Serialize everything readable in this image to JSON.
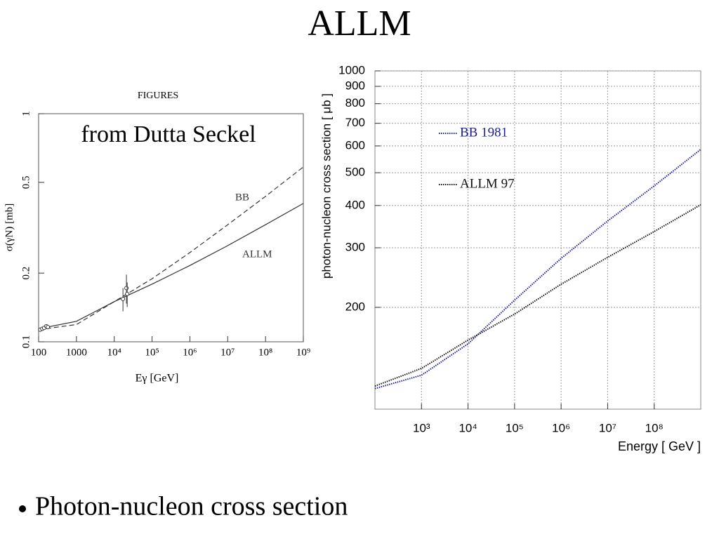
{
  "title": "ALLM",
  "bullet": "Photon-nucleon cross section",
  "chart_data": [
    {
      "type": "line",
      "header": "FIGURES",
      "annotation": "from Dutta Seckel",
      "xlabel": "Eγ [GeV]",
      "ylabel": "σ(γN) [mb]",
      "xscale": "log",
      "yscale": "log",
      "grid": false,
      "legend": "inline",
      "xlim": [
        100,
        1000000000
      ],
      "ylim": [
        0.1,
        1
      ],
      "xticks": [
        100,
        1000,
        {
          "value": 10000,
          "label": "10⁴"
        },
        {
          "value": 100000,
          "label": "10⁵"
        },
        {
          "value": 1000000,
          "label": "10⁶"
        },
        {
          "value": 10000000,
          "label": "10⁷"
        },
        {
          "value": 100000000,
          "label": "10⁸"
        },
        {
          "value": 1000000000,
          "label": "10⁹"
        }
      ],
      "yticks": [
        0.1,
        0.2,
        0.5,
        1
      ],
      "x": [
        100,
        1000,
        10000,
        100000,
        1000000,
        10000000,
        100000000,
        1000000000
      ],
      "series": [
        {
          "name": "BB",
          "color": "#333333",
          "line_style": "dashed",
          "values": [
            0.113,
            0.119,
            0.15,
            0.189,
            0.246,
            0.326,
            0.434,
            0.584
          ]
        },
        {
          "name": "ALLM",
          "color": "#333333",
          "line_style": "solid",
          "values": [
            0.114,
            0.123,
            0.15,
            0.179,
            0.216,
            0.264,
            0.326,
            0.404
          ]
        }
      ],
      "points": {
        "x": [
          110,
          125,
          140,
          160,
          175,
          17000,
          21000,
          22000
        ],
        "values": [
          0.113,
          0.114,
          0.115,
          0.117,
          0.116,
          0.154,
          0.172,
          0.162
        ],
        "errors": [
          0.002,
          0.002,
          0.002,
          0.002,
          0.002,
          0.018,
          0.025,
          0.02
        ]
      }
    },
    {
      "type": "line",
      "xlabel": "Energy [ GeV ]",
      "ylabel": "photon-nucleon cross section [ μb ]",
      "xscale": "log",
      "yscale": "log",
      "grid": true,
      "legend": "upper left",
      "xlim": [
        100,
        1000000000
      ],
      "ylim": [
        100,
        1000
      ],
      "xticks": [
        {
          "value": 1000,
          "label": "10³"
        },
        {
          "value": 10000,
          "label": "10⁴"
        },
        {
          "value": 100000,
          "label": "10⁵"
        },
        {
          "value": 1000000,
          "label": "10⁶"
        },
        {
          "value": 10000000,
          "label": "10⁷"
        },
        {
          "value": 100000000,
          "label": "10⁸"
        }
      ],
      "yticks": [
        200,
        300,
        400,
        500,
        600,
        700,
        800,
        900,
        1000
      ],
      "x": [
        100,
        1000,
        10000,
        100000,
        1000000,
        10000000,
        100000000,
        1000000000
      ],
      "series": [
        {
          "name": "BB 1981",
          "color": "#1a1aa6",
          "line_style": "dotted",
          "values": [
            115,
            126,
            156,
            210,
            279,
            360,
            457,
            586
          ]
        },
        {
          "name": "ALLM 97",
          "color": "#111111",
          "line_style": "dotted",
          "values": [
            117,
            132,
            160,
            191,
            234,
            281,
            335,
            402
          ]
        }
      ]
    }
  ]
}
